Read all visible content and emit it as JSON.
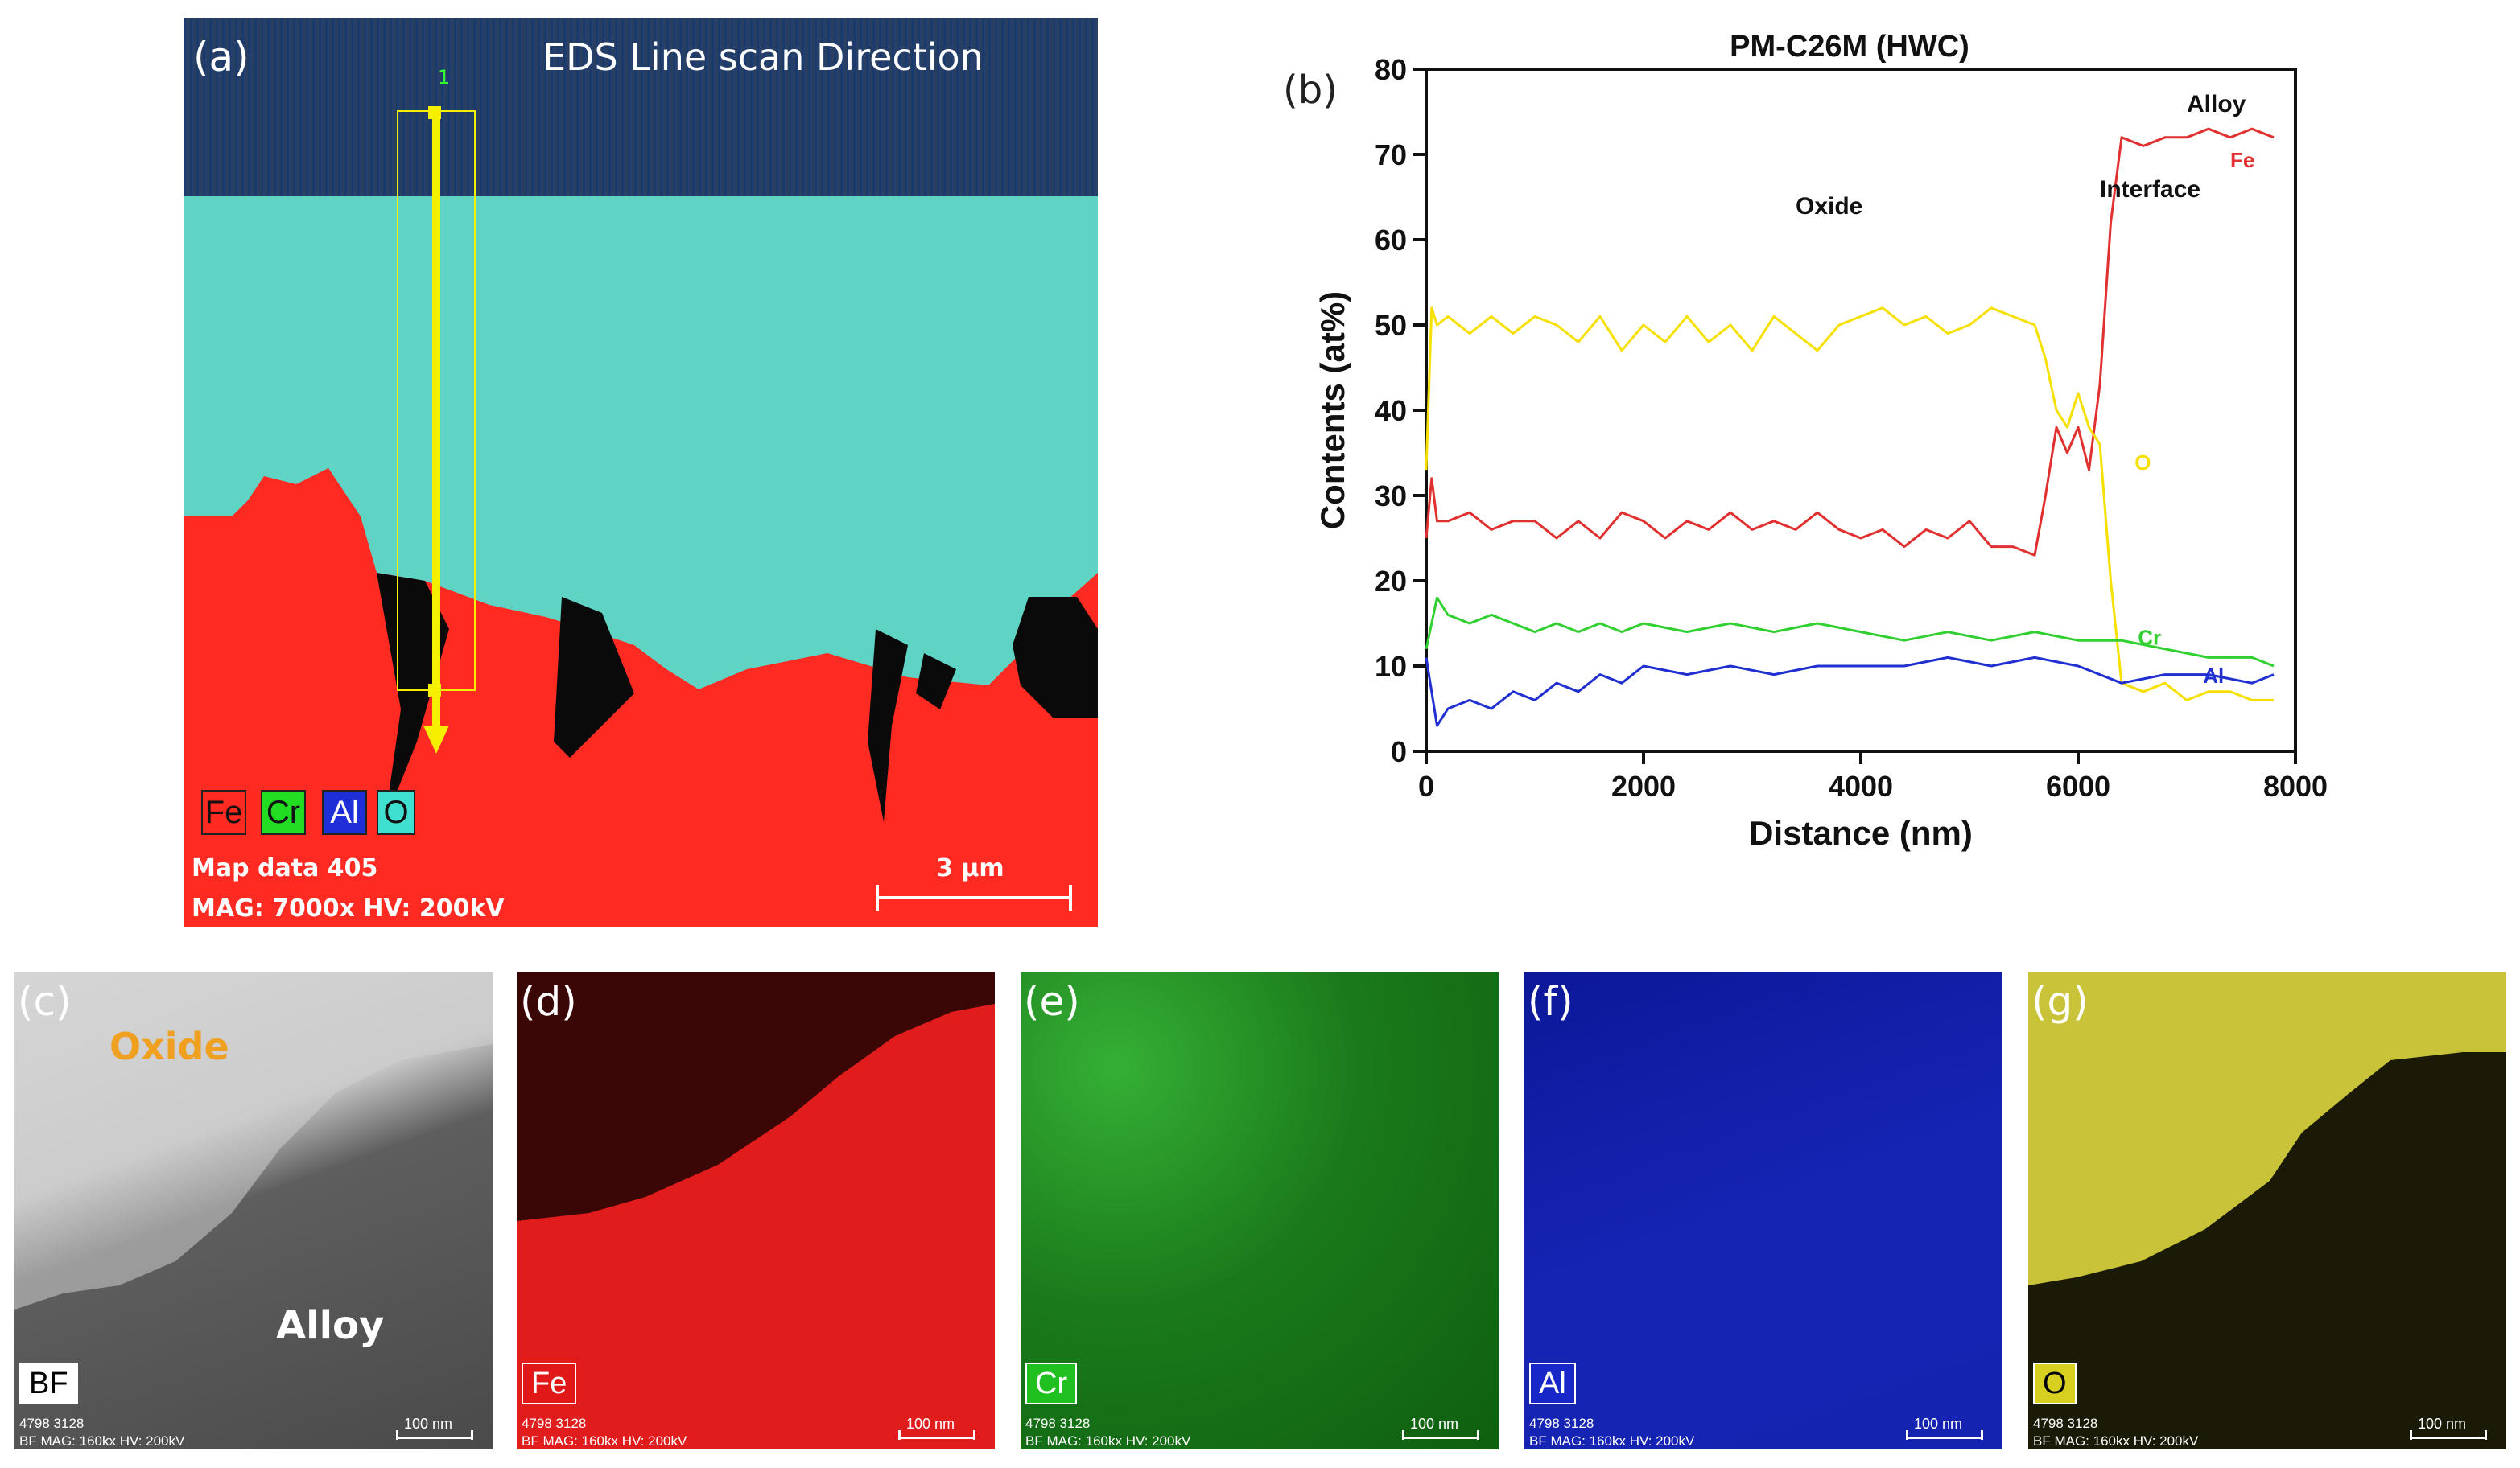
{
  "panel_a": {
    "label": "(a)",
    "title": "EDS Line scan Direction",
    "legend": [
      {
        "text": "Fe",
        "bg": "#ff2a22",
        "fg": "#111111"
      },
      {
        "text": "Cr",
        "bg": "#22dd22",
        "fg": "#111111"
      },
      {
        "text": "Al",
        "bg": "#1f2fd8",
        "fg": "#ffffff"
      },
      {
        "text": "O",
        "bg": "#3fe0d0",
        "fg": "#111111"
      }
    ],
    "map_data": "Map data 405",
    "mag_info": "MAG: 7000x  HV: 200kV",
    "scalebar": "3 µm",
    "start_marker": "1"
  },
  "panel_b": {
    "label": "(b)"
  },
  "chart_data": {
    "type": "line",
    "title": "PM-C26M (HWC)",
    "xlabel": "Distance (nm)",
    "ylabel": "Contents (at%)",
    "xlim": [
      0,
      8000
    ],
    "ylim": [
      0,
      80
    ],
    "xticks": [
      0,
      2000,
      4000,
      6000,
      8000
    ],
    "yticks": [
      0,
      10,
      20,
      30,
      40,
      50,
      60,
      70,
      80
    ],
    "annotations": [
      {
        "text": "Oxide",
        "x": 3400,
        "y": 63
      },
      {
        "text": "Interface",
        "x": 6200,
        "y": 65
      },
      {
        "text": "Alloy",
        "x": 7000,
        "y": 75
      }
    ],
    "series": [
      {
        "name": "Fe",
        "color": "#e03030",
        "label_pos": [
          7400,
          68.5
        ],
        "x": [
          0,
          50,
          100,
          200,
          400,
          600,
          800,
          1000,
          1200,
          1400,
          1600,
          1800,
          2000,
          2200,
          2400,
          2600,
          2800,
          3000,
          3200,
          3400,
          3600,
          3800,
          4000,
          4200,
          4400,
          4600,
          4800,
          5000,
          5200,
          5400,
          5600,
          5700,
          5800,
          5900,
          6000,
          6100,
          6200,
          6300,
          6400,
          6600,
          6800,
          7000,
          7200,
          7400,
          7600,
          7800
        ],
        "y": [
          25,
          32,
          27,
          27,
          28,
          26,
          27,
          27,
          25,
          27,
          25,
          28,
          27,
          25,
          27,
          26,
          28,
          26,
          27,
          26,
          28,
          26,
          25,
          26,
          24,
          26,
          25,
          27,
          24,
          24,
          23,
          30,
          38,
          35,
          38,
          33,
          43,
          62,
          72,
          71,
          72,
          72,
          73,
          72,
          73,
          72
        ]
      },
      {
        "name": "O",
        "color": "#f5e000",
        "label_pos": [
          6520,
          33
        ],
        "x": [
          0,
          50,
          100,
          200,
          400,
          600,
          800,
          1000,
          1200,
          1400,
          1600,
          1800,
          2000,
          2200,
          2400,
          2600,
          2800,
          3000,
          3200,
          3400,
          3600,
          3800,
          4000,
          4200,
          4400,
          4600,
          4800,
          5000,
          5200,
          5400,
          5600,
          5700,
          5800,
          5900,
          6000,
          6100,
          6200,
          6300,
          6400,
          6600,
          6800,
          7000,
          7200,
          7400,
          7600,
          7800
        ],
        "y": [
          33,
          52,
          50,
          51,
          49,
          51,
          49,
          51,
          50,
          48,
          51,
          47,
          50,
          48,
          51,
          48,
          50,
          47,
          51,
          49,
          47,
          50,
          51,
          52,
          50,
          51,
          49,
          50,
          52,
          51,
          50,
          46,
          40,
          38,
          42,
          38,
          36,
          20,
          8,
          7,
          8,
          6,
          7,
          7,
          6,
          6
        ]
      },
      {
        "name": "Cr",
        "color": "#30d030",
        "label_pos": [
          6550,
          12.5
        ],
        "x": [
          0,
          100,
          200,
          400,
          600,
          800,
          1000,
          1200,
          1400,
          1600,
          1800,
          2000,
          2400,
          2800,
          3200,
          3600,
          4000,
          4400,
          4800,
          5200,
          5600,
          6000,
          6400,
          6800,
          7200,
          7600,
          7800
        ],
        "y": [
          12,
          18,
          16,
          15,
          16,
          15,
          14,
          15,
          14,
          15,
          14,
          15,
          14,
          15,
          14,
          15,
          14,
          13,
          14,
          13,
          14,
          13,
          13,
          12,
          11,
          11,
          10
        ]
      },
      {
        "name": "Al",
        "color": "#2030d0",
        "label_pos": [
          7150,
          8
        ],
        "x": [
          0,
          100,
          200,
          400,
          600,
          800,
          1000,
          1200,
          1400,
          1600,
          1800,
          2000,
          2400,
          2800,
          3200,
          3600,
          4000,
          4400,
          4800,
          5200,
          5600,
          6000,
          6400,
          6800,
          7200,
          7600,
          7800
        ],
        "y": [
          11,
          3,
          5,
          6,
          5,
          7,
          6,
          8,
          7,
          9,
          8,
          10,
          9,
          10,
          9,
          10,
          10,
          10,
          11,
          10,
          11,
          10,
          8,
          9,
          9,
          8,
          9
        ]
      }
    ]
  },
  "bottom_panels": [
    {
      "label": "(c)",
      "tag": "BF",
      "tag_bg": "#ffffff",
      "tag_fg": "#000000",
      "ids": "4798 3128",
      "mag": "BF  MAG: 160kx  HV: 200kV",
      "scale": "100 nm",
      "oxide_label": "Oxide",
      "alloy_label": "Alloy"
    },
    {
      "label": "(d)",
      "tag": "Fe",
      "tag_bg": "#e01818",
      "tag_fg": "#ffffff",
      "ids": "4798 3128",
      "mag": "BF  MAG: 160kx  HV: 200kV",
      "scale": "100 nm"
    },
    {
      "label": "(e)",
      "tag": "Cr",
      "tag_bg": "#20c020",
      "tag_fg": "#ffffff",
      "ids": "4798 3128",
      "mag": "BF  MAG: 160kx  HV: 200kV",
      "scale": "100 nm"
    },
    {
      "label": "(f)",
      "tag": "Al",
      "tag_bg": "#1828c8",
      "tag_fg": "#ffffff",
      "ids": "4798 3128",
      "mag": "BF  MAG: 160kx  HV: 200kV",
      "scale": "100 nm"
    },
    {
      "label": "(g)",
      "tag": "O",
      "tag_bg": "#d8d020",
      "tag_fg": "#000000",
      "ids": "4798 3128",
      "mag": "BF  MAG: 160kx  HV: 200kV",
      "scale": "100 nm"
    }
  ]
}
